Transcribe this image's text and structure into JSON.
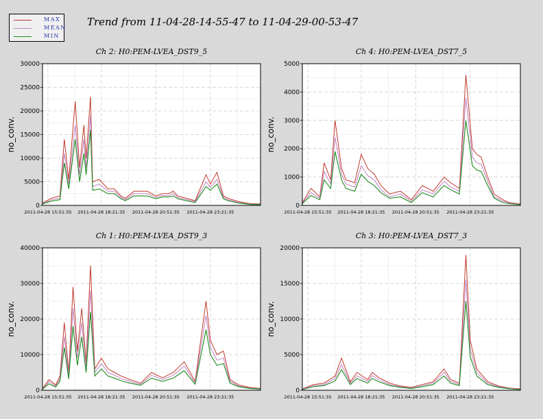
{
  "title": "Trend from 11-04-28-14-55-47 to 11-04-29-00-53-47",
  "legend": [
    {
      "label": "MAX",
      "color": "#c0392b"
    },
    {
      "label": "MEAN",
      "color": "#c080c0"
    },
    {
      "label": "MIN",
      "color": "#1a8a1a"
    }
  ],
  "chart_data": [
    {
      "type": "line",
      "title": "Ch 2: H0:PEM-LVEA_DST9_5",
      "ylabel": "no_conv.",
      "xlabel": "",
      "ylim": [
        0,
        30000
      ],
      "yticks": [
        0,
        5000,
        10000,
        15000,
        20000,
        25000,
        30000
      ],
      "xticks": [
        "2011-04-28 15:51:35",
        "2011-04-28 18:21:35",
        "2011-04-28 20:51:35",
        "2011-04-28 23:21:35"
      ],
      "grid": true,
      "series": [
        {
          "name": "MAX",
          "x": [
            0,
            0.04,
            0.08,
            0.1,
            0.12,
            0.15,
            0.17,
            0.19,
            0.2,
            0.22,
            0.23,
            0.26,
            0.3,
            0.33,
            0.36,
            0.38,
            0.42,
            0.48,
            0.52,
            0.55,
            0.58,
            0.6,
            0.62,
            0.7,
            0.75,
            0.77,
            0.8,
            0.83,
            0.85,
            0.9,
            0.95,
            1
          ],
          "y": [
            500,
            1500,
            2000,
            14000,
            5500,
            22000,
            8000,
            17000,
            10000,
            23000,
            5000,
            5500,
            3500,
            3500,
            2000,
            1500,
            3000,
            3000,
            2000,
            2500,
            2500,
            3000,
            2000,
            1000,
            6500,
            4500,
            7000,
            2000,
            1500,
            800,
            400,
            300
          ]
        },
        {
          "name": "MEAN",
          "x": [
            0,
            0.04,
            0.08,
            0.1,
            0.12,
            0.15,
            0.17,
            0.19,
            0.2,
            0.22,
            0.23,
            0.26,
            0.3,
            0.33,
            0.36,
            0.38,
            0.42,
            0.48,
            0.52,
            0.55,
            0.58,
            0.6,
            0.62,
            0.7,
            0.75,
            0.77,
            0.8,
            0.83,
            0.85,
            0.9,
            0.95,
            1
          ],
          "y": [
            400,
            1200,
            1500,
            11000,
            4500,
            17000,
            6500,
            14000,
            8000,
            19000,
            4000,
            4500,
            3000,
            3000,
            1700,
            1200,
            2500,
            2500,
            1700,
            2100,
            2100,
            2500,
            1700,
            800,
            5000,
            3800,
            5500,
            1700,
            1200,
            600,
            300,
            200
          ]
        },
        {
          "name": "MIN",
          "x": [
            0,
            0.04,
            0.08,
            0.1,
            0.12,
            0.15,
            0.17,
            0.19,
            0.2,
            0.22,
            0.23,
            0.26,
            0.3,
            0.33,
            0.36,
            0.38,
            0.42,
            0.48,
            0.52,
            0.55,
            0.58,
            0.6,
            0.62,
            0.7,
            0.75,
            0.77,
            0.8,
            0.83,
            0.85,
            0.9,
            0.95,
            1
          ],
          "y": [
            300,
            900,
            1200,
            9000,
            3500,
            14000,
            5000,
            11000,
            6500,
            16000,
            3200,
            3500,
            2500,
            2500,
            1400,
            1000,
            2000,
            2000,
            1400,
            1800,
            1800,
            2000,
            1400,
            600,
            4000,
            3200,
            4500,
            1400,
            1000,
            500,
            200,
            150
          ]
        }
      ]
    },
    {
      "type": "line",
      "title": "Ch 4: H0:PEM-LVEA_DST7_5",
      "ylabel": "no_conv.",
      "xlabel": "",
      "ylim": [
        0,
        5000
      ],
      "yticks": [
        0,
        1000,
        2000,
        3000,
        4000,
        5000
      ],
      "xticks": [
        "2011-04-28 15:51:35",
        "2011-04-28 18:21:35",
        "2011-04-28 20:51:35",
        "2011-04-28 23:21:35"
      ],
      "grid": true,
      "series": [
        {
          "name": "MAX",
          "x": [
            0,
            0.04,
            0.08,
            0.1,
            0.13,
            0.15,
            0.18,
            0.2,
            0.24,
            0.27,
            0.3,
            0.33,
            0.36,
            0.4,
            0.45,
            0.5,
            0.55,
            0.6,
            0.65,
            0.68,
            0.72,
            0.75,
            0.78,
            0.8,
            0.82,
            0.85,
            0.88,
            0.92,
            0.95,
            1
          ],
          "y": [
            100,
            600,
            300,
            1500,
            900,
            3000,
            1300,
            900,
            800,
            1800,
            1300,
            1100,
            700,
            400,
            500,
            200,
            700,
            500,
            1000,
            800,
            600,
            4600,
            2000,
            1800,
            1700,
            1000,
            400,
            200,
            100,
            50
          ]
        },
        {
          "name": "MEAN",
          "x": [
            0,
            0.04,
            0.08,
            0.1,
            0.13,
            0.15,
            0.18,
            0.2,
            0.24,
            0.27,
            0.3,
            0.33,
            0.36,
            0.4,
            0.45,
            0.5,
            0.55,
            0.6,
            0.65,
            0.68,
            0.72,
            0.75,
            0.78,
            0.8,
            0.82,
            0.85,
            0.88,
            0.92,
            0.95,
            1
          ],
          "y": [
            80,
            450,
            250,
            1200,
            750,
            2400,
            1100,
            750,
            650,
            1400,
            1050,
            900,
            550,
            300,
            400,
            150,
            550,
            400,
            850,
            650,
            500,
            3800,
            1700,
            1500,
            1450,
            850,
            300,
            150,
            80,
            40
          ]
        },
        {
          "name": "MIN",
          "x": [
            0,
            0.04,
            0.08,
            0.1,
            0.13,
            0.15,
            0.18,
            0.2,
            0.24,
            0.27,
            0.3,
            0.33,
            0.36,
            0.4,
            0.45,
            0.5,
            0.55,
            0.6,
            0.65,
            0.68,
            0.72,
            0.75,
            0.78,
            0.8,
            0.82,
            0.85,
            0.88,
            0.92,
            0.95,
            1
          ],
          "y": [
            60,
            350,
            200,
            900,
            600,
            1900,
            900,
            600,
            500,
            1100,
            850,
            700,
            450,
            250,
            300,
            100,
            450,
            300,
            700,
            550,
            400,
            3000,
            1400,
            1250,
            1200,
            700,
            250,
            100,
            60,
            30
          ]
        }
      ]
    },
    {
      "type": "line",
      "title": "Ch 1: H0:PEM-LVEA_DST9_3",
      "ylabel": "no_conv.",
      "xlabel": "",
      "ylim": [
        0,
        40000
      ],
      "yticks": [
        0,
        10000,
        20000,
        30000,
        40000
      ],
      "xticks": [
        "2011-04-28 15:51:35",
        "2011-04-28 18:21:35",
        "2011-04-28 20:51:35",
        "2011-04-28 23:21:35"
      ],
      "grid": true,
      "series": [
        {
          "name": "MAX",
          "x": [
            0,
            0.03,
            0.06,
            0.08,
            0.1,
            0.12,
            0.14,
            0.16,
            0.18,
            0.2,
            0.22,
            0.24,
            0.27,
            0.3,
            0.33,
            0.36,
            0.4,
            0.45,
            0.5,
            0.55,
            0.6,
            0.65,
            0.7,
            0.75,
            0.77,
            0.8,
            0.83,
            0.86,
            0.9,
            0.95,
            1
          ],
          "y": [
            500,
            3000,
            1500,
            4000,
            19000,
            5000,
            29000,
            11000,
            23000,
            8000,
            35000,
            6000,
            9000,
            6000,
            5000,
            4000,
            3000,
            2000,
            5000,
            3500,
            5000,
            8000,
            2500,
            25000,
            14000,
            10000,
            11000,
            3000,
            1500,
            800,
            500
          ]
        },
        {
          "name": "MEAN",
          "x": [
            0,
            0.03,
            0.06,
            0.08,
            0.1,
            0.12,
            0.14,
            0.16,
            0.18,
            0.2,
            0.22,
            0.24,
            0.27,
            0.3,
            0.33,
            0.36,
            0.4,
            0.45,
            0.5,
            0.55,
            0.6,
            0.65,
            0.7,
            0.75,
            0.77,
            0.8,
            0.83,
            0.86,
            0.9,
            0.95,
            1
          ],
          "y": [
            400,
            2400,
            1200,
            3200,
            15000,
            4000,
            23000,
            9000,
            19000,
            6500,
            28000,
            5000,
            7500,
            5000,
            4200,
            3300,
            2500,
            1700,
            4200,
            3000,
            4200,
            6800,
            2100,
            21000,
            12000,
            8500,
            9000,
            2500,
            1200,
            600,
            400
          ]
        },
        {
          "name": "MIN",
          "x": [
            0,
            0.03,
            0.06,
            0.08,
            0.1,
            0.12,
            0.14,
            0.16,
            0.18,
            0.2,
            0.22,
            0.24,
            0.27,
            0.3,
            0.33,
            0.36,
            0.4,
            0.45,
            0.5,
            0.55,
            0.6,
            0.65,
            0.7,
            0.75,
            0.77,
            0.8,
            0.83,
            0.86,
            0.9,
            0.95,
            1
          ],
          "y": [
            300,
            1800,
            900,
            2500,
            12000,
            3200,
            18000,
            7000,
            15000,
            5000,
            22000,
            4000,
            6000,
            4000,
            3400,
            2700,
            2000,
            1400,
            3400,
            2500,
            3400,
            5500,
            1700,
            17000,
            10000,
            7000,
            7500,
            2000,
            1000,
            500,
            300
          ]
        }
      ]
    },
    {
      "type": "line",
      "title": "Ch 3: H0:PEM-LVEA_DST7_3",
      "ylabel": "no_conv.",
      "xlabel": "",
      "ylim": [
        0,
        20000
      ],
      "yticks": [
        0,
        5000,
        10000,
        15000,
        20000
      ],
      "xticks": [
        "2011-04-28 15:51:35",
        "2011-04-28 18:21:35",
        "2011-04-28 20:51:35",
        "2011-04-28 23:21:35"
      ],
      "grid": true,
      "series": [
        {
          "name": "MAX",
          "x": [
            0,
            0.05,
            0.1,
            0.15,
            0.18,
            0.22,
            0.25,
            0.3,
            0.32,
            0.35,
            0.4,
            0.45,
            0.5,
            0.55,
            0.6,
            0.65,
            0.68,
            0.72,
            0.75,
            0.77,
            0.8,
            0.85,
            0.9,
            0.95,
            1
          ],
          "y": [
            200,
            800,
            1000,
            2000,
            4500,
            1200,
            2500,
            1500,
            2500,
            1800,
            1000,
            600,
            400,
            800,
            1200,
            3000,
            1500,
            1000,
            19000,
            7000,
            3000,
            1200,
            600,
            300,
            200
          ]
        },
        {
          "name": "MEAN",
          "x": [
            0,
            0.05,
            0.1,
            0.15,
            0.18,
            0.22,
            0.25,
            0.3,
            0.32,
            0.35,
            0.4,
            0.45,
            0.5,
            0.55,
            0.6,
            0.65,
            0.68,
            0.72,
            0.75,
            0.77,
            0.8,
            0.85,
            0.9,
            0.95,
            1
          ],
          "y": [
            150,
            650,
            800,
            1650,
            3600,
            1000,
            2050,
            1250,
            2050,
            1500,
            800,
            500,
            300,
            650,
            1000,
            2500,
            1250,
            800,
            15500,
            5800,
            2500,
            1000,
            500,
            250,
            150
          ]
        },
        {
          "name": "MIN",
          "x": [
            0,
            0.05,
            0.1,
            0.15,
            0.18,
            0.22,
            0.25,
            0.3,
            0.32,
            0.35,
            0.4,
            0.45,
            0.5,
            0.55,
            0.6,
            0.65,
            0.68,
            0.72,
            0.75,
            0.77,
            0.8,
            0.85,
            0.9,
            0.95,
            1
          ],
          "y": [
            100,
            500,
            650,
            1300,
            2900,
            800,
            1650,
            1000,
            1650,
            1200,
            650,
            400,
            250,
            500,
            800,
            2000,
            1000,
            650,
            12500,
            4700,
            2000,
            800,
            400,
            200,
            100
          ]
        }
      ]
    }
  ]
}
